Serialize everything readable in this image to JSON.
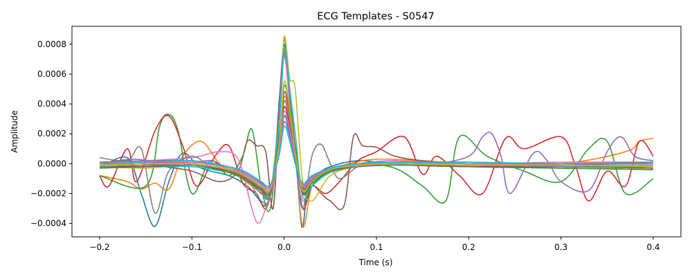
{
  "chart_data": {
    "type": "line",
    "title": "ECG Templates - S0547",
    "xlabel": "Time (s)",
    "ylabel": "Amplitude",
    "xlim": [
      -0.23,
      0.43
    ],
    "ylim": [
      -0.00049,
      0.00092
    ],
    "x_ticks": [
      -0.2,
      -0.1,
      0.0,
      0.1,
      0.2,
      0.3,
      0.4
    ],
    "x_tick_labels": [
      "−0.2",
      "−0.1",
      "0.0",
      "0.1",
      "0.2",
      "0.3",
      "0.4"
    ],
    "y_ticks": [
      -0.0004,
      -0.0002,
      0.0,
      0.0002,
      0.0004,
      0.0006,
      0.0008
    ],
    "y_tick_labels": [
      "−0.0004",
      "−0.0002",
      "0.0000",
      "0.0002",
      "0.0004",
      "0.0006",
      "0.0008"
    ],
    "grid": false,
    "legend": "none",
    "series": [
      {
        "color": "#1f77b4",
        "x": [
          -0.2,
          -0.17,
          -0.155,
          -0.14,
          -0.125,
          -0.11,
          -0.09,
          -0.06,
          -0.04,
          -0.03,
          -0.02,
          -0.012,
          -0.005,
          0.0,
          0.005,
          0.012,
          0.019,
          0.025,
          0.035,
          0.05,
          0.08,
          0.12,
          0.2,
          0.3,
          0.4
        ],
        "y": [
          -3e-05,
          4e-05,
          -0.0002,
          -0.00042,
          -0.00012,
          7e-05,
          -3e-05,
          -8e-05,
          -0.00015,
          -0.00022,
          -0.00028,
          -0.00012,
          0.00045,
          0.0008,
          0.0005,
          0.0001,
          -0.00042,
          -0.0002,
          -8e-05,
          -2e-05,
          2e-05,
          0.0,
          -2e-05,
          -3e-05,
          -4e-05
        ]
      },
      {
        "color": "#ff7f0e",
        "x": [
          -0.2,
          -0.17,
          -0.155,
          -0.14,
          -0.125,
          -0.11,
          -0.09,
          -0.07,
          -0.05,
          -0.035,
          -0.02,
          -0.012,
          -0.005,
          0.0,
          0.006,
          0.012,
          0.02,
          0.03,
          0.045,
          0.07,
          0.1,
          0.15,
          0.2,
          0.3,
          0.37,
          0.385,
          0.4
        ],
        "y": [
          -8e-05,
          -0.00012,
          -0.00017,
          -0.00013,
          -0.00017,
          5e-05,
          0.00015,
          0.0,
          -8e-05,
          -0.00015,
          -0.0002,
          -0.00012,
          0.0003,
          0.00083,
          0.0005,
          0.0001,
          -0.00042,
          -0.00015,
          -5e-05,
          0.0,
          3e-05,
          2e-05,
          0.0,
          0.0,
          8e-05,
          0.00015,
          0.00017
        ]
      },
      {
        "color": "#2ca02c",
        "x": [
          -0.2,
          -0.15,
          -0.135,
          -0.125,
          -0.115,
          -0.1,
          -0.08,
          -0.06,
          -0.045,
          -0.035,
          -0.025,
          -0.015,
          -0.005,
          0.0,
          0.005,
          0.012,
          0.02,
          0.03,
          0.05,
          0.08,
          0.12,
          0.15,
          0.175,
          0.19,
          0.22,
          0.26,
          0.3,
          0.33,
          0.35,
          0.37,
          0.4
        ],
        "y": [
          -8e-05,
          -0.00015,
          0.00025,
          0.00033,
          0.00022,
          -0.0002,
          2e-05,
          -8e-05,
          5e-05,
          0.00023,
          -0.00015,
          -0.0003,
          0.0003,
          0.00085,
          0.0005,
          0.0001,
          -0.0003,
          -0.00015,
          -5e-05,
          0.0,
          -3e-05,
          -0.00015,
          -0.00025,
          0.00018,
          5e-05,
          -5e-05,
          -0.00012,
          0.0001,
          0.00015,
          -0.0002,
          -0.0001
        ]
      },
      {
        "color": "#d62728",
        "x": [
          -0.2,
          -0.19,
          -0.17,
          -0.16,
          -0.14,
          -0.125,
          -0.11,
          -0.095,
          -0.075,
          -0.06,
          -0.045,
          -0.03,
          -0.02,
          -0.012,
          -0.005,
          0.0,
          0.005,
          0.012,
          0.02,
          0.03,
          0.045,
          0.06,
          0.08,
          0.1,
          0.13,
          0.15,
          0.165,
          0.19,
          0.215,
          0.24,
          0.26,
          0.3,
          0.315,
          0.33,
          0.35,
          0.37,
          0.385,
          0.4
        ],
        "y": [
          -8e-05,
          -0.00015,
          0.0001,
          -0.00012,
          0.00022,
          0.00032,
          0.00012,
          -0.00015,
          5e-05,
          0.00012,
          -0.00013,
          -0.0002,
          -0.0003,
          -0.0001,
          0.0004,
          0.00078,
          0.0005,
          0.0001,
          -0.0003,
          -0.00015,
          -0.0002,
          -0.00012,
          2e-05,
          8e-05,
          0.00018,
          -7e-05,
          5e-05,
          -8e-05,
          -0.0002,
          0.00017,
          0.0001,
          0.00018,
          0.0,
          -0.00025,
          -5e-05,
          -0.00015,
          0.00015,
          5e-05
        ]
      },
      {
        "color": "#9467bd",
        "x": [
          -0.2,
          -0.16,
          -0.12,
          -0.08,
          -0.06,
          -0.04,
          -0.025,
          -0.015,
          -0.005,
          0.0,
          0.005,
          0.012,
          0.02,
          0.03,
          0.05,
          0.08,
          0.12,
          0.16,
          0.2,
          0.215,
          0.225,
          0.235,
          0.245,
          0.27,
          0.285,
          0.3,
          0.33,
          0.35,
          0.365,
          0.38,
          0.4
        ],
        "y": [
          0.0,
          3e-05,
          -2e-05,
          2e-05,
          -5e-05,
          -0.0001,
          -0.0002,
          -0.0002,
          0.0003,
          0.00075,
          0.0005,
          8e-05,
          -0.0002,
          -0.00012,
          -5e-05,
          0.0,
          2e-05,
          0.0,
          5e-05,
          0.00018,
          0.0002,
          5e-05,
          -0.0002,
          7e-05,
          2e-05,
          -0.00012,
          -0.00018,
          8e-05,
          0.00018,
          5e-05,
          2e-05
        ]
      },
      {
        "color": "#8c564b",
        "x": [
          -0.2,
          -0.17,
          -0.13,
          -0.1,
          -0.07,
          -0.05,
          -0.04,
          -0.03,
          -0.02,
          -0.012,
          -0.005,
          0.0,
          0.005,
          0.012,
          0.02,
          0.03,
          0.04,
          0.05,
          0.065,
          0.075,
          0.085,
          0.1,
          0.12,
          0.15,
          0.2,
          0.3,
          0.4
        ],
        "y": [
          0.0,
          2e-05,
          -2e-05,
          -5e-05,
          -0.00012,
          -5e-05,
          0.00015,
          0.00012,
          8e-05,
          -0.0003,
          0.0004,
          0.00079,
          0.0005,
          0.0001,
          -0.0003,
          -0.00015,
          -0.0002,
          -0.00025,
          -0.00028,
          0.00018,
          0.00012,
          0.00011,
          5e-05,
          2e-05,
          0.0,
          -1e-05,
          1e-05
        ]
      },
      {
        "color": "#e377c2",
        "x": [
          -0.2,
          -0.15,
          -0.1,
          -0.07,
          -0.05,
          -0.035,
          -0.028,
          -0.02,
          -0.01,
          -0.005,
          0.0,
          0.006,
          0.012,
          0.02,
          0.03,
          0.05,
          0.08,
          0.12,
          0.2,
          0.3,
          0.4
        ],
        "y": [
          0.0,
          2e-05,
          4e-05,
          8e-05,
          3e-05,
          -0.0003,
          -0.0004,
          -0.0003,
          -0.0001,
          0.00035,
          0.00072,
          0.0004,
          5e-05,
          -0.00025,
          -0.0001,
          -3e-05,
          0.0,
          2e-05,
          0.0,
          1e-05,
          1e-05
        ]
      },
      {
        "color": "#7f7f7f",
        "x": [
          -0.2,
          -0.17,
          -0.155,
          -0.14,
          -0.125,
          -0.1,
          -0.08,
          -0.06,
          -0.04,
          -0.025,
          -0.015,
          -0.005,
          0.0,
          0.006,
          0.012,
          0.02,
          0.03,
          0.04,
          0.05,
          0.06,
          0.08,
          0.1,
          0.15,
          0.2,
          0.3,
          0.4
        ],
        "y": [
          4e-05,
          2e-05,
          0.0001,
          -0.00033,
          -5e-05,
          5e-05,
          -2e-05,
          -5e-05,
          -0.0001,
          -0.00025,
          -0.0002,
          0.00035,
          0.00073,
          0.0005,
          5e-05,
          -0.0003,
          5e-05,
          0.00013,
          0.0,
          -0.0001,
          -2e-05,
          0.0,
          1e-05,
          0.0,
          0.0,
          1e-05
        ]
      },
      {
        "color": "#bcbd22",
        "x": [
          -0.2,
          -0.15,
          -0.1,
          -0.06,
          -0.04,
          -0.025,
          -0.015,
          -0.005,
          0.0,
          0.006,
          0.012,
          0.02,
          0.03,
          0.05,
          0.08,
          0.12,
          0.2,
          0.3,
          0.4
        ],
        "y": [
          -2e-05,
          -3e-05,
          -1e-05,
          -5e-05,
          -0.00012,
          -0.00015,
          -0.00018,
          0.0003,
          0.00085,
          0.00057,
          0.0005,
          -0.00012,
          -0.00025,
          -8e-05,
          -2e-05,
          -1e-05,
          -2e-05,
          -2e-05,
          -2e-05
        ]
      },
      {
        "color": "#17becf",
        "x": [
          -0.2,
          -0.15,
          -0.1,
          -0.06,
          -0.04,
          -0.025,
          -0.015,
          -0.005,
          0.0,
          0.006,
          0.012,
          0.02,
          0.03,
          0.05,
          0.08,
          0.12,
          0.2,
          0.3,
          0.4
        ],
        "y": [
          -3e-05,
          -2e-05,
          -2e-05,
          -6e-05,
          -0.0001,
          -0.00018,
          -0.0002,
          0.0003,
          0.00078,
          0.0005,
          0.0002,
          -0.00022,
          -0.00015,
          -6e-05,
          -2e-05,
          -1e-05,
          -1e-05,
          -2e-05,
          -1e-05
        ]
      },
      {
        "color": "#1f77b4",
        "x": [
          -0.2,
          -0.15,
          -0.1,
          -0.06,
          -0.04,
          -0.025,
          -0.015,
          -0.005,
          0.0,
          0.006,
          0.012,
          0.02,
          0.03,
          0.05,
          0.08,
          0.12,
          0.2,
          0.3,
          0.4
        ],
        "y": [
          -1e-05,
          1e-05,
          0.0,
          -4e-05,
          -8e-05,
          -0.00014,
          -0.00016,
          0.0001,
          0.00032,
          0.0002,
          0.0,
          -0.00015,
          -0.0001,
          -4e-05,
          -1e-05,
          0.0,
          -1e-05,
          -2e-05,
          -2e-05
        ]
      },
      {
        "color": "#ff7f0e",
        "x": [
          -0.2,
          -0.15,
          -0.1,
          -0.06,
          -0.04,
          -0.025,
          -0.015,
          -0.005,
          0.0,
          0.006,
          0.012,
          0.02,
          0.03,
          0.05,
          0.08,
          0.12,
          0.2,
          0.3,
          0.4
        ],
        "y": [
          -2e-05,
          -1e-05,
          0.0,
          -5e-05,
          -0.0001,
          -0.00016,
          -0.00018,
          0.00015,
          0.00045,
          0.0003,
          8e-05,
          -0.00018,
          -0.00012,
          -5e-05,
          -2e-05,
          -1e-05,
          -1e-05,
          -2e-05,
          -3e-05
        ]
      },
      {
        "color": "#2ca02c",
        "x": [
          -0.2,
          -0.15,
          -0.1,
          -0.06,
          -0.04,
          -0.025,
          -0.015,
          -0.005,
          0.0,
          0.006,
          0.012,
          0.02,
          0.03,
          0.05,
          0.08,
          0.12,
          0.2,
          0.3,
          0.4
        ],
        "y": [
          -3e-05,
          -2e-05,
          -1e-05,
          -6e-05,
          -0.00012,
          -0.00018,
          -0.0002,
          0.0002,
          0.00052,
          0.00038,
          0.00012,
          -0.0002,
          -0.00013,
          -5e-05,
          -2e-05,
          -1e-05,
          -2e-05,
          -3e-05,
          -4e-05
        ]
      },
      {
        "color": "#d62728",
        "x": [
          -0.2,
          -0.15,
          -0.1,
          -0.06,
          -0.04,
          -0.025,
          -0.015,
          -0.005,
          0.0,
          0.006,
          0.012,
          0.02,
          0.03,
          0.05,
          0.08,
          0.12,
          0.2,
          0.3,
          0.4
        ],
        "y": [
          -1e-05,
          0.0,
          1e-05,
          -3e-05,
          -9e-05,
          -0.00015,
          -0.00017,
          0.00012,
          0.00038,
          0.00025,
          5e-05,
          -0.00016,
          -0.00011,
          -4e-05,
          -1e-05,
          0.0,
          0.0,
          -1e-05,
          -1e-05
        ]
      },
      {
        "color": "#9467bd",
        "x": [
          -0.2,
          -0.15,
          -0.1,
          -0.06,
          -0.04,
          -0.025,
          -0.015,
          -0.005,
          0.0,
          0.006,
          0.012,
          0.02,
          0.03,
          0.05,
          0.08,
          0.12,
          0.2,
          0.3,
          0.4
        ],
        "y": [
          1e-05,
          2e-05,
          2e-05,
          -2e-05,
          -7e-05,
          -0.00013,
          -0.00015,
          8e-05,
          0.00028,
          0.00018,
          2e-05,
          -0.00014,
          -9e-05,
          -3e-05,
          0.0,
          1e-05,
          1e-05,
          0.0,
          0.0
        ]
      },
      {
        "color": "#8c564b",
        "x": [
          -0.2,
          -0.15,
          -0.1,
          -0.06,
          -0.04,
          -0.025,
          -0.015,
          -0.005,
          0.0,
          0.006,
          0.012,
          0.02,
          0.03,
          0.05,
          0.08,
          0.12,
          0.2,
          0.3,
          0.4
        ],
        "y": [
          -2e-05,
          -2e-05,
          -1e-05,
          -5e-05,
          -0.00011,
          -0.00017,
          -0.00019,
          0.00018,
          0.00048,
          0.00034,
          0.0001,
          -0.00019,
          -0.00012,
          -5e-05,
          -2e-05,
          -1e-05,
          -2e-05,
          -2e-05,
          -3e-05
        ]
      },
      {
        "color": "#e377c2",
        "x": [
          -0.2,
          -0.15,
          -0.1,
          -0.06,
          -0.04,
          -0.025,
          -0.015,
          -0.005,
          0.0,
          0.006,
          0.012,
          0.02,
          0.03,
          0.05,
          0.08,
          0.12,
          0.2,
          0.3,
          0.4
        ],
        "y": [
          0.0,
          1e-05,
          1e-05,
          -3e-05,
          -8e-05,
          -0.00014,
          -0.00016,
          0.0001,
          0.00035,
          0.00022,
          4e-05,
          -0.00015,
          -0.0001,
          -3e-05,
          -1e-05,
          0.0,
          0.0,
          -1e-05,
          -1e-05
        ]
      },
      {
        "color": "#7f7f7f",
        "x": [
          -0.2,
          -0.15,
          -0.1,
          -0.06,
          -0.04,
          -0.025,
          -0.015,
          -0.005,
          0.0,
          0.006,
          0.012,
          0.02,
          0.03,
          0.05,
          0.08,
          0.12,
          0.2,
          0.3,
          0.4
        ],
        "y": [
          -2e-05,
          -1e-05,
          -1e-05,
          -4e-05,
          -0.0001,
          -0.00016,
          -0.00018,
          0.00014,
          0.00042,
          0.00028,
          6e-05,
          -0.00017,
          -0.00011,
          -4e-05,
          -2e-05,
          -1e-05,
          -1e-05,
          -2e-05,
          -2e-05
        ]
      },
      {
        "color": "#bcbd22",
        "x": [
          -0.2,
          -0.15,
          -0.1,
          -0.06,
          -0.04,
          -0.025,
          -0.015,
          -0.005,
          0.0,
          0.006,
          0.012,
          0.02,
          0.03,
          0.05,
          0.08,
          0.12,
          0.2,
          0.3,
          0.4
        ],
        "y": [
          -1e-05,
          0.0,
          0.0,
          -4e-05,
          -9e-05,
          -0.00015,
          -0.00017,
          0.00016,
          0.00055,
          0.00036,
          8e-05,
          -0.00018,
          -0.00012,
          -4e-05,
          -1e-05,
          0.0,
          -1e-05,
          -1e-05,
          -2e-05
        ]
      },
      {
        "color": "#17becf",
        "x": [
          -0.2,
          -0.15,
          -0.1,
          -0.06,
          -0.04,
          -0.025,
          -0.015,
          -0.005,
          0.0,
          0.006,
          0.012,
          0.02,
          0.03,
          0.05,
          0.08,
          0.12,
          0.2,
          0.3,
          0.4
        ],
        "y": [
          0.0,
          1e-05,
          2e-05,
          -2e-05,
          -6e-05,
          -0.00012,
          -0.00014,
          7e-05,
          0.00025,
          0.00015,
          0.0,
          -0.00013,
          -8e-05,
          -3e-05,
          0.0,
          1e-05,
          1e-05,
          0.0,
          0.0
        ]
      }
    ]
  }
}
